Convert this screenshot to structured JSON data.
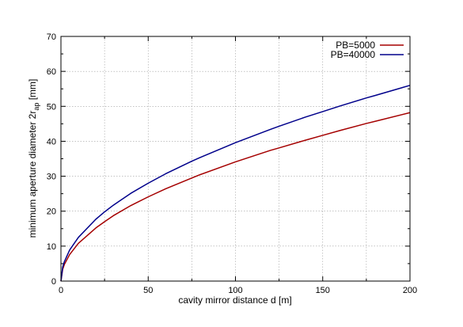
{
  "chart_data": {
    "type": "line",
    "title": "",
    "xlabel": "cavity mirror distance d [m]",
    "ylabel": {
      "main": "minimum aperture diameter 2r",
      "subscript": "ap",
      "suffix": " [mm]"
    },
    "xlim": [
      0,
      200
    ],
    "ylim": [
      0,
      70
    ],
    "xticks": [
      0,
      50,
      100,
      150,
      200
    ],
    "yticks": [
      0,
      10,
      20,
      30,
      40,
      50,
      60,
      70
    ],
    "grid": true,
    "legend_position": "top-right",
    "series": [
      {
        "name": "PB=5000",
        "color": "#a50000",
        "x": [
          0,
          1,
          2,
          5,
          10,
          20,
          25,
          30,
          40,
          50,
          60,
          75,
          80,
          100,
          120,
          125,
          140,
          150,
          160,
          175,
          180,
          200
        ],
        "y": [
          0,
          3.4,
          4.8,
          7.6,
          10.8,
          15.2,
          17.0,
          18.7,
          21.6,
          24.1,
          26.4,
          29.5,
          30.5,
          34.1,
          37.4,
          38.1,
          40.3,
          41.7,
          43.1,
          45.1,
          45.7,
          48.2
        ]
      },
      {
        "name": "PB=40000",
        "color": "#00008b",
        "x": [
          0,
          1,
          2,
          5,
          10,
          20,
          25,
          30,
          40,
          50,
          60,
          75,
          80,
          100,
          120,
          125,
          140,
          150,
          160,
          175,
          180,
          200
        ],
        "y": [
          0,
          4.0,
          5.6,
          8.9,
          12.5,
          17.7,
          19.8,
          21.7,
          25.1,
          28.0,
          30.7,
          34.3,
          35.4,
          39.6,
          43.4,
          44.3,
          46.9,
          48.5,
          50.1,
          52.4,
          53.1,
          56.0
        ]
      }
    ]
  }
}
